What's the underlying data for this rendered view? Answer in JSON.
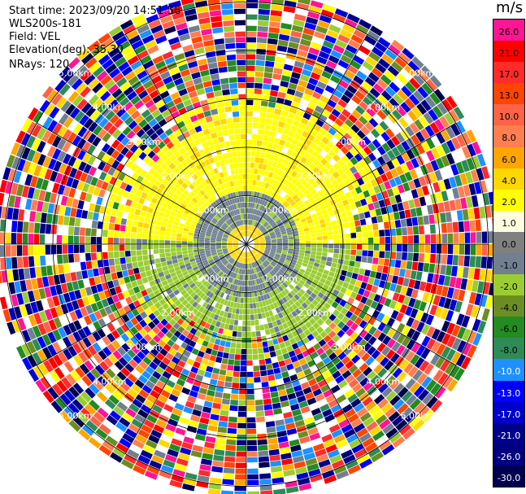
{
  "header": {
    "start_time": "Start time: 2023/09/20 14:51:56",
    "instrument": "WLS200s-181",
    "field": "Field: VEL",
    "elevation": "Elevation(deg): 35.30",
    "nrays": "NRays: 120"
  },
  "chart_data": {
    "type": "heatmap",
    "projection": "polar",
    "field": "VEL",
    "units": "m/s",
    "nrays": 120,
    "elevation_deg": 35.3,
    "range_rings_km": [
      1.0,
      2.0,
      3.0,
      4.0,
      5.0
    ],
    "range_ring_labels": [
      "1.00km",
      "2.00km",
      "3.00km",
      "4.00km",
      "5.00km"
    ],
    "colorbar": {
      "unit_label": "m/s",
      "tick_labels": [
        "26.0",
        "21.0",
        "17.0",
        "13.0",
        "10.0",
        "8.0",
        "6.0",
        "4.0",
        "2.0",
        "1.0",
        "0.0",
        "-1.0",
        "-2.0",
        "-4.0",
        "-6.0",
        "-8.0",
        "-10.0",
        "-13.0",
        "-17.0",
        "-21.0",
        "-26.0",
        "-30.0"
      ],
      "colors": [
        "#ff1493",
        "#ff0000",
        "#ff2a2a",
        "#ff4500",
        "#ff6347",
        "#ff7f50",
        "#ffa500",
        "#ffd700",
        "#ffff00",
        "#ffffe0",
        "#808080",
        "#708090",
        "#9acd32",
        "#6b8e23",
        "#228b22",
        "#2e8b57",
        "#1e90ff",
        "#0000ff",
        "#0000cd",
        "#00008b",
        "#000080",
        "#000050"
      ]
    }
  }
}
